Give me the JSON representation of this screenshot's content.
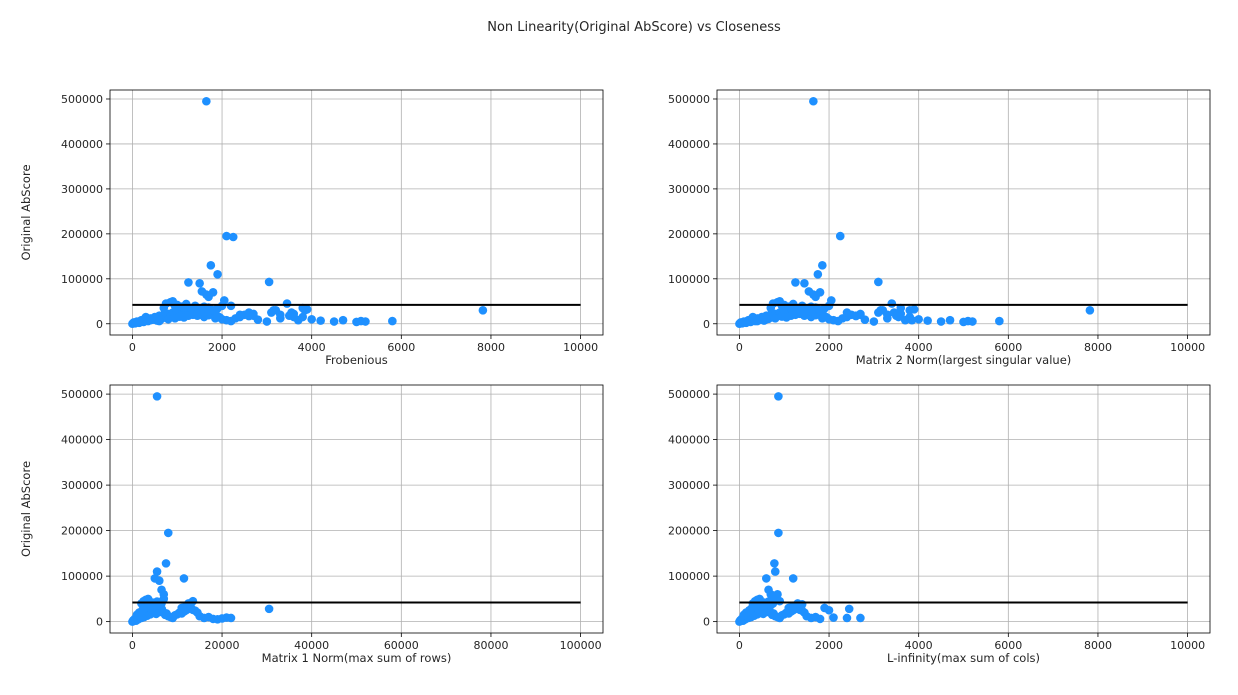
{
  "figure": {
    "suptitle": "Non Linearity(Original AbScore) vs Closeness",
    "point_color": "#1e90ff",
    "line_color": "#000000",
    "grid_color": "#b0b0b0"
  },
  "chart_data": [
    {
      "type": "scatter",
      "title": "",
      "xlabel": "Frobenious",
      "ylabel": "Original AbScore",
      "xlim": [
        -500,
        10500
      ],
      "ylim": [
        -25000,
        520000
      ],
      "xticks": [
        0,
        2000,
        4000,
        6000,
        8000,
        10000
      ],
      "yticks": [
        0,
        100000,
        200000,
        300000,
        400000,
        500000
      ],
      "grid": true,
      "hline": {
        "y": 42000,
        "x_from": 0,
        "x_to": 10000
      },
      "series": [
        {
          "x": [
            0,
            30,
            60,
            100,
            150,
            200,
            250,
            300,
            350,
            400,
            450,
            500,
            550,
            600,
            650,
            700,
            750,
            800,
            850,
            900,
            950,
            1000,
            1050,
            1100,
            1150,
            1200,
            1250,
            1300,
            1350,
            1400,
            1450,
            1500,
            1550,
            1600,
            1650,
            1700,
            1750,
            1800,
            1850,
            1900,
            1950,
            2000,
            2100,
            2200,
            2300,
            2400,
            2500,
            2600,
            2700,
            2800,
            3000,
            3100,
            3200,
            3300,
            3500,
            3600,
            3700,
            3800,
            3900,
            4000,
            4200,
            4500,
            4700,
            5000,
            5100,
            5200,
            5800,
            7820,
            300,
            450,
            700,
            750,
            850,
            900,
            950,
            1000,
            1100,
            1150,
            1200,
            1300,
            1350,
            1400,
            1500,
            1550,
            1600,
            1700,
            1750,
            1800,
            1900,
            2000,
            2050,
            2200,
            1750,
            1900,
            2100,
            1250,
            1500,
            1550,
            1650,
            1700,
            1800,
            2250,
            3050,
            3150,
            3300,
            3450,
            3550,
            3600,
            3800,
            3850,
            400,
            600,
            800,
            950,
            1050,
            1150,
            1250,
            1350,
            1450,
            1600,
            1700,
            2400,
            2600,
            2700
          ],
          "y": [
            0,
            3000,
            1000,
            5000,
            2000,
            8000,
            4000,
            10000,
            6000,
            12000,
            9000,
            15000,
            7000,
            18000,
            11000,
            20000,
            14000,
            22000,
            17000,
            25000,
            19000,
            28000,
            16000,
            24000,
            21000,
            30000,
            26000,
            27000,
            23000,
            29000,
            18000,
            25000,
            20000,
            15000,
            22000,
            19000,
            27000,
            24000,
            12000,
            17000,
            14000,
            10000,
            8000,
            6000,
            12000,
            15000,
            20000,
            17000,
            22000,
            9000,
            5000,
            25000,
            30000,
            12000,
            18000,
            22000,
            8000,
            15000,
            32000,
            10000,
            7000,
            5000,
            8000,
            4000,
            6000,
            5000,
            6000,
            30000,
            15000,
            12000,
            35000,
            45000,
            48000,
            50000,
            40000,
            42000,
            38000,
            36000,
            44000,
            35000,
            30000,
            40000,
            33000,
            28000,
            38000,
            36000,
            32000,
            30000,
            34000,
            40000,
            52000,
            40000,
            130000,
            110000,
            195000,
            92000,
            90000,
            72000,
            65000,
            60000,
            70000,
            193000,
            93000,
            30000,
            20000,
            45000,
            25000,
            15000,
            35000,
            30000,
            8000,
            6000,
            10000,
            12000,
            16000,
            14000,
            18000,
            20000,
            22000,
            26000,
            28000,
            20000,
            25000,
            18000
          ],
          "extra_point": {
            "x": 1650,
            "y": 495000
          }
        }
      ]
    },
    {
      "type": "scatter",
      "title": "",
      "xlabel": "Matrix 2 Norm(largest singular value)",
      "ylabel": "",
      "xlim": [
        -500,
        10500
      ],
      "ylim": [
        -25000,
        520000
      ],
      "xticks": [
        0,
        2000,
        4000,
        6000,
        8000,
        10000
      ],
      "yticks": [
        0,
        100000,
        200000,
        300000,
        400000,
        500000
      ],
      "grid": true,
      "hline": {
        "y": 42000,
        "x_from": 0,
        "x_to": 10000
      },
      "series": [
        {
          "x": [
            0,
            30,
            60,
            100,
            150,
            200,
            250,
            300,
            350,
            400,
            450,
            500,
            550,
            600,
            650,
            700,
            750,
            800,
            850,
            900,
            950,
            1000,
            1050,
            1100,
            1150,
            1200,
            1250,
            1300,
            1350,
            1400,
            1450,
            1500,
            1550,
            1600,
            1650,
            1700,
            1750,
            1800,
            1850,
            1900,
            1950,
            2000,
            2100,
            2200,
            2300,
            2400,
            2500,
            2600,
            2700,
            2800,
            3000,
            3100,
            3200,
            3300,
            3500,
            3600,
            3700,
            3800,
            3900,
            4000,
            4200,
            4500,
            4700,
            5000,
            5100,
            5200,
            5800,
            7820,
            300,
            450,
            700,
            750,
            850,
            900,
            950,
            1000,
            1100,
            1150,
            1200,
            1300,
            1350,
            1400,
            1500,
            1550,
            1600,
            1700,
            1750,
            1800,
            1900,
            2000,
            2050,
            1250,
            1750,
            1850,
            2250,
            1450,
            1550,
            1650,
            1700,
            1800,
            3100,
            3150,
            3300,
            3400,
            3450,
            3550,
            3600,
            3800,
            3850,
            400,
            600,
            800,
            950,
            1050,
            1150,
            1250,
            1350,
            1450,
            1600,
            2400,
            2600,
            2700
          ],
          "y": [
            0,
            3000,
            1000,
            5000,
            2000,
            8000,
            4000,
            10000,
            6000,
            12000,
            9000,
            15000,
            7000,
            18000,
            11000,
            20000,
            14000,
            22000,
            17000,
            25000,
            19000,
            28000,
            16000,
            24000,
            21000,
            30000,
            26000,
            27000,
            23000,
            29000,
            18000,
            25000,
            20000,
            15000,
            22000,
            19000,
            27000,
            24000,
            12000,
            17000,
            14000,
            10000,
            8000,
            6000,
            12000,
            15000,
            20000,
            17000,
            22000,
            9000,
            5000,
            25000,
            30000,
            12000,
            18000,
            22000,
            8000,
            15000,
            32000,
            10000,
            7000,
            5000,
            8000,
            4000,
            6000,
            5000,
            6000,
            30000,
            15000,
            12000,
            35000,
            45000,
            48000,
            50000,
            40000,
            42000,
            38000,
            36000,
            44000,
            35000,
            30000,
            40000,
            33000,
            28000,
            38000,
            36000,
            32000,
            30000,
            34000,
            40000,
            52000,
            92000,
            110000,
            130000,
            195000,
            90000,
            72000,
            65000,
            60000,
            70000,
            93000,
            30000,
            20000,
            45000,
            25000,
            15000,
            35000,
            30000,
            8000,
            6000,
            10000,
            12000,
            16000,
            14000,
            18000,
            20000,
            22000,
            26000,
            28000,
            25000,
            18000,
            20000
          ],
          "extra_point": {
            "x": 1650,
            "y": 495000
          }
        }
      ]
    },
    {
      "type": "scatter",
      "title": "",
      "xlabel": "Matrix 1 Norm(max sum of rows)",
      "ylabel": "Original AbScore",
      "xlim": [
        -5000,
        105000
      ],
      "ylim": [
        -25000,
        520000
      ],
      "xticks": [
        0,
        20000,
        40000,
        60000,
        80000,
        100000
      ],
      "yticks": [
        0,
        100000,
        200000,
        300000,
        400000,
        500000
      ],
      "grid": true,
      "hline": {
        "y": 42000,
        "x_from": 0,
        "x_to": 100000
      },
      "series": [
        {
          "x": [
            0,
            200,
            500,
            800,
            1000,
            1300,
            1600,
            2000,
            2300,
            2600,
            3000,
            3300,
            3600,
            4000,
            4300,
            4600,
            5000,
            5300,
            5600,
            6000,
            6300,
            6600,
            7000,
            7300,
            7600,
            8000,
            8500,
            9000,
            9500,
            10000,
            10500,
            11000,
            11500,
            12000,
            12500,
            13000,
            13500,
            14000,
            14500,
            15000,
            16000,
            17000,
            18000,
            19000,
            20000,
            21000,
            22000,
            30500,
            2000,
            2500,
            3000,
            3500,
            4000,
            4500,
            5000,
            5500,
            6000,
            6500,
            7000,
            11000,
            12000,
            12500,
            13000,
            13500,
            5000,
            5500,
            6000,
            6500,
            7000,
            7500,
            8000,
            11500,
            1000,
            1500,
            2200,
            2800,
            3400,
            4200,
            4800,
            5400
          ],
          "y": [
            0,
            3000,
            6000,
            2000,
            9000,
            5000,
            12000,
            8000,
            15000,
            10000,
            18000,
            13000,
            20000,
            16000,
            22000,
            19000,
            25000,
            17000,
            28000,
            21000,
            24000,
            27000,
            20000,
            15000,
            18000,
            12000,
            10000,
            8000,
            14000,
            16000,
            20000,
            18000,
            22000,
            25000,
            28000,
            30000,
            26000,
            24000,
            20000,
            12000,
            8000,
            10000,
            6000,
            5000,
            7000,
            9000,
            8000,
            28000,
            40000,
            45000,
            48000,
            50000,
            35000,
            42000,
            38000,
            44000,
            36000,
            40000,
            50000,
            30000,
            35000,
            40000,
            38000,
            45000,
            95000,
            110000,
            90000,
            70000,
            60000,
            128000,
            195000,
            95000,
            15000,
            20000,
            25000,
            30000,
            32000,
            28000,
            34000,
            36000
          ],
          "extra_point": {
            "x": 5500,
            "y": 495000
          }
        }
      ]
    },
    {
      "type": "scatter",
      "title": "",
      "xlabel": "L-infinity(max sum of cols)",
      "ylabel": "",
      "xlim": [
        -500,
        10500
      ],
      "ylim": [
        -25000,
        520000
      ],
      "xticks": [
        0,
        2000,
        4000,
        6000,
        8000,
        10000
      ],
      "yticks": [
        0,
        100000,
        200000,
        300000,
        400000,
        500000
      ],
      "grid": true,
      "hline": {
        "y": 42000,
        "x_from": 0,
        "x_to": 10000
      },
      "series": [
        {
          "x": [
            0,
            20,
            50,
            80,
            100,
            130,
            160,
            200,
            230,
            260,
            300,
            330,
            360,
            400,
            430,
            460,
            500,
            530,
            560,
            600,
            630,
            660,
            700,
            730,
            760,
            800,
            850,
            900,
            950,
            1000,
            1050,
            1100,
            1150,
            1200,
            1250,
            1300,
            1350,
            1400,
            1450,
            1500,
            1600,
            1700,
            1800,
            1900,
            2000,
            2100,
            2400,
            2450,
            2700,
            300,
            350,
            400,
            450,
            500,
            550,
            600,
            650,
            700,
            750,
            800,
            1100,
            1200,
            1300,
            1400,
            600,
            650,
            700,
            780,
            800,
            850,
            1200,
            870,
            900,
            100,
            150,
            220,
            280,
            340,
            420,
            480,
            540
          ],
          "y": [
            0,
            3000,
            6000,
            2000,
            9000,
            5000,
            12000,
            8000,
            15000,
            10000,
            18000,
            13000,
            20000,
            16000,
            22000,
            19000,
            25000,
            17000,
            28000,
            21000,
            24000,
            27000,
            20000,
            15000,
            18000,
            12000,
            10000,
            8000,
            14000,
            16000,
            20000,
            18000,
            22000,
            25000,
            28000,
            30000,
            26000,
            24000,
            20000,
            12000,
            8000,
            10000,
            6000,
            30000,
            25000,
            9000,
            8000,
            28000,
            8000,
            40000,
            45000,
            48000,
            50000,
            35000,
            42000,
            38000,
            44000,
            36000,
            40000,
            50000,
            30000,
            35000,
            40000,
            38000,
            95000,
            70000,
            60000,
            128000,
            110000,
            60000,
            95000,
            195000,
            45000,
            15000,
            20000,
            25000,
            30000,
            32000,
            28000,
            34000,
            36000
          ],
          "extra_point": {
            "x": 870,
            "y": 495000
          }
        }
      ]
    }
  ]
}
